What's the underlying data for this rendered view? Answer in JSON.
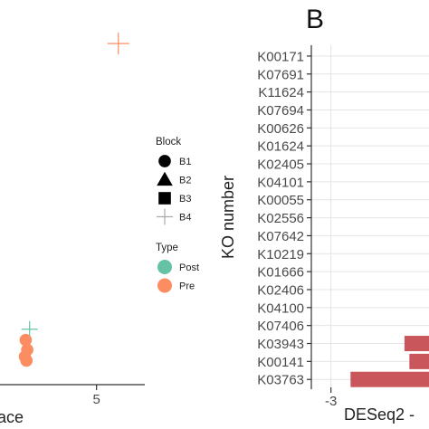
{
  "chart_data": [
    {
      "type": "scatter",
      "panel_label": "",
      "xlabel_visible": "ace",
      "ylabel": "",
      "x_tick_labels": [
        "5"
      ],
      "x_ticks": [
        5
      ],
      "xlim": [
        -1.2,
        8.1
      ],
      "ylim": [
        -1,
        17.5
      ],
      "points": [
        {
          "x": 6.4,
          "y": 16.2,
          "shape": "plus",
          "type": "Pre"
        },
        {
          "x": 0.7,
          "y": 1.6,
          "shape": "plus",
          "type": "Post"
        },
        {
          "x": 0.45,
          "y": 1.05,
          "shape": "circle",
          "type": "Pre"
        },
        {
          "x": 0.55,
          "y": 0.55,
          "shape": "circle",
          "type": "Pre"
        },
        {
          "x": 0.4,
          "y": 0.2,
          "shape": "circle",
          "type": "Pre"
        },
        {
          "x": 0.5,
          "y": 0.0,
          "shape": "circle",
          "type": "Pre"
        }
      ],
      "legend": {
        "placement": "right",
        "block_title": "Block",
        "block_entries": [
          {
            "label": "B1",
            "shape": "circle"
          },
          {
            "label": "B2",
            "shape": "triangle"
          },
          {
            "label": "B3",
            "shape": "square"
          },
          {
            "label": "B4",
            "shape": "plus"
          }
        ],
        "type_title": "Type",
        "type_entries": [
          {
            "label": "Post",
            "color": "#66c2a5"
          },
          {
            "label": "Pre",
            "color": "#fc8d62"
          }
        ]
      }
    },
    {
      "type": "bar",
      "orientation": "horizontal",
      "panel_label": "B",
      "ylabel": "KO number",
      "xlabel_visible": "DESeq2 -",
      "categories": [
        "K00171",
        "K07691",
        "K11624",
        "K07694",
        "K00626",
        "K01624",
        "K02405",
        "K04101",
        "K00055",
        "K02556",
        "K07642",
        "K10219",
        "K01666",
        "K02406",
        "K04100",
        "K07406",
        "K03943",
        "K00141",
        "K03763"
      ],
      "values": [
        null,
        null,
        null,
        null,
        null,
        null,
        null,
        null,
        null,
        null,
        null,
        null,
        null,
        null,
        null,
        null,
        -0.75,
        -0.6,
        -2.4
      ],
      "x_tick_labels": [
        "-3"
      ],
      "x_ticks": [
        -3
      ],
      "xlim": [
        -3.6,
        0
      ],
      "grid": true,
      "bar_color": "#c8565a"
    }
  ],
  "colors": {
    "post": "#66c2a5",
    "pre": "#fc8d62",
    "bar": "#c8565a",
    "grid": "#e4e4e4",
    "axis": "#333333"
  }
}
